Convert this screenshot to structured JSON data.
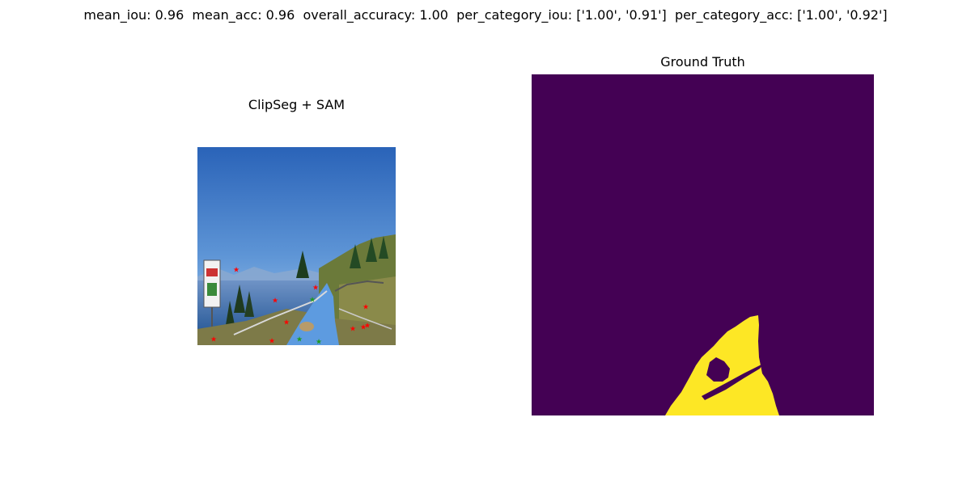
{
  "figure": {
    "metrics_line": "mean_iou: 0.96  mean_acc: 0.96  overall_accuracy: 1.00  per_category_iou: ['1.00', '0.91']  per_category_acc: ['1.00', '0.92']",
    "metrics": {
      "mean_iou": 0.96,
      "mean_acc": 0.96,
      "overall_accuracy": 1.0,
      "per_category_iou": [
        "1.00",
        "0.91"
      ],
      "per_category_acc": [
        "1.00",
        "0.92"
      ]
    }
  },
  "panels": {
    "left": {
      "title": "ClipSeg + SAM",
      "content": "photo of mountain trail with lake, sign board, fence; prompt points overlaid",
      "colors": {
        "sky_top": "#2a63b8",
        "sky_bottom": "#9cc2e8",
        "trail": "#5d9be0",
        "negative_point": "#ff0000",
        "positive_point": "#1f9a1f"
      }
    },
    "right": {
      "title": "Ground Truth",
      "content": "binary segmentation mask",
      "colors": {
        "background": "#440154",
        "foreground": "#fde725"
      }
    }
  }
}
